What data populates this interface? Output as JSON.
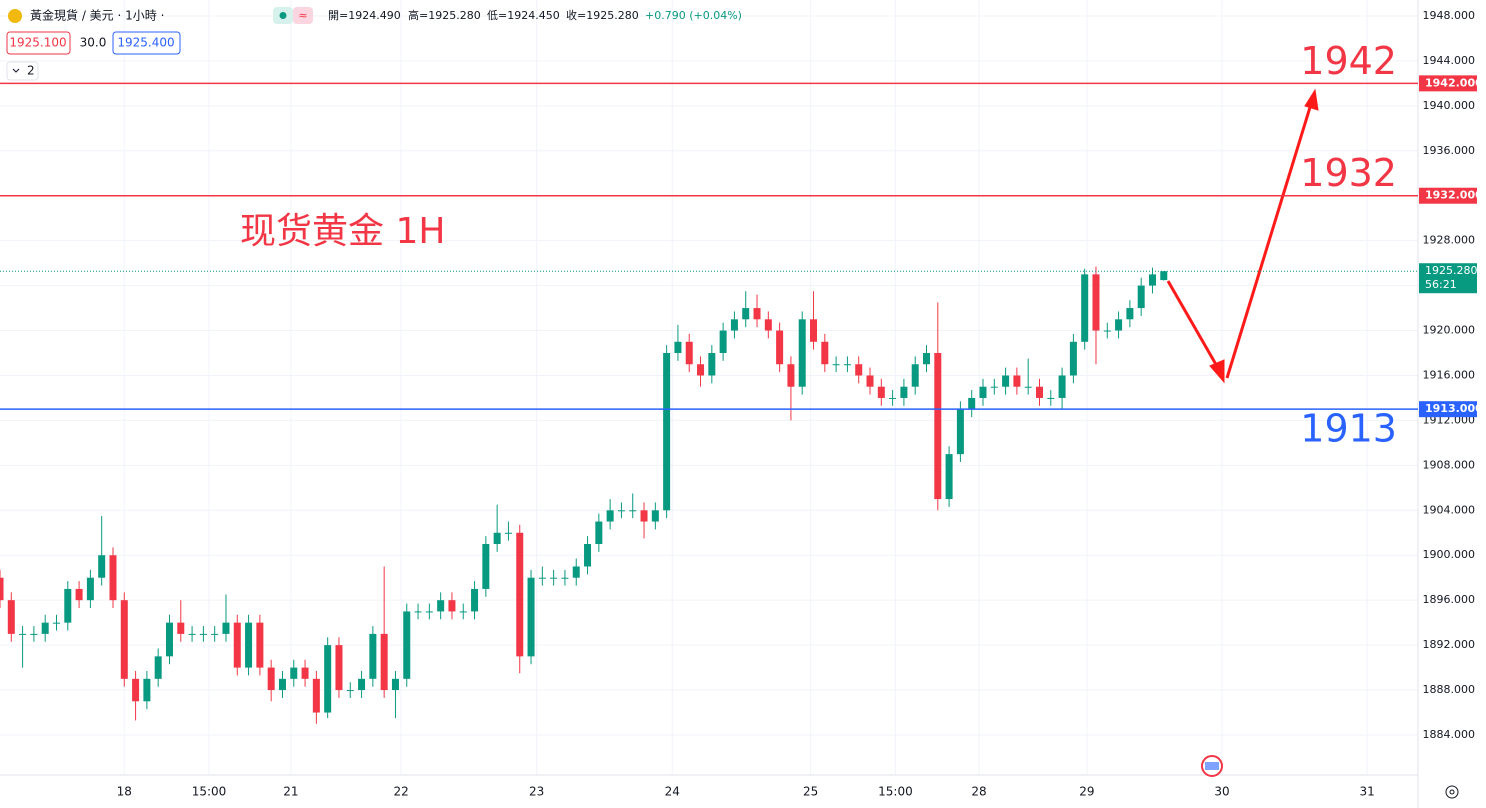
{
  "header": {
    "symbol": "黃金現貨 / 美元 · 1小時 ·",
    "open": "開=1924.490",
    "high": "高=1925.280",
    "low": "低=1924.450",
    "close": "收=1925.280",
    "change": "+0.790 (+0.04%)",
    "bid": "1925.100",
    "spread": "30.0",
    "ask": "1925.400",
    "indicators": "2"
  },
  "chart_data": {
    "type": "candlestick",
    "annotation": "现货黄金 1H",
    "up_color": "#089981",
    "down_color": "#f23645",
    "x": [
      0,
      2,
      4,
      6,
      8,
      10,
      12,
      14,
      16,
      18,
      20,
      22,
      24,
      26,
      28,
      30,
      32,
      34,
      36,
      38,
      40,
      42,
      44,
      46,
      48,
      50,
      52,
      54,
      56,
      58,
      60,
      62,
      64,
      66,
      68,
      70,
      72,
      74,
      76,
      78,
      80,
      82,
      84,
      86,
      88,
      90,
      92,
      94,
      96,
      98,
      100,
      102,
      104,
      106,
      108,
      110,
      112,
      114,
      116,
      118,
      120,
      122,
      124,
      126,
      128,
      130,
      132,
      134,
      136,
      138,
      140,
      142,
      144,
      146,
      148,
      150,
      152,
      154,
      156,
      158,
      160,
      162,
      164,
      166,
      168,
      170,
      172,
      174,
      176,
      178,
      180,
      182,
      184,
      186,
      188,
      190,
      192,
      194,
      196,
      198,
      200,
      202,
      204,
      206
    ],
    "open": [
      1898,
      1896,
      1893,
      1893,
      1893,
      1894,
      1894,
      1897,
      1896,
      1898,
      1900,
      1896,
      1889,
      1887,
      1889,
      1891,
      1894,
      1893,
      1893,
      1893,
      1893,
      1894,
      1890,
      1894,
      1890,
      1888,
      1889,
      1890,
      1889,
      1886,
      1892,
      1888,
      1888,
      1889,
      1893,
      1888,
      1889,
      1895,
      1895,
      1895,
      1896,
      1895,
      1895,
      1897,
      1901,
      1902,
      1902,
      1891,
      1898,
      1898,
      1898,
      1898,
      1899,
      1901,
      1903,
      1904,
      1904,
      1904,
      1903,
      1904,
      1918,
      1919,
      1917,
      1916,
      1918,
      1920,
      1921,
      1922,
      1921,
      1920,
      1917,
      1915,
      1921,
      1919,
      1917,
      1917,
      1917,
      1916,
      1915,
      1914,
      1914,
      1915,
      1917,
      1918,
      1905,
      1909,
      1913,
      1914,
      1915,
      1915,
      1916,
      1915,
      1915,
      1914,
      1914,
      1916,
      1919,
      1925,
      1920,
      1920,
      1921,
      1922,
      1924,
      1924.49
    ],
    "high": [
      1898.7,
      1896.7,
      1893.7,
      1893.7,
      1894.7,
      1894.7,
      1897.7,
      1897.7,
      1898.7,
      1903.5,
      1900.7,
      1896.7,
      1889.7,
      1889.7,
      1891.7,
      1894.7,
      1896,
      1893.7,
      1893.7,
      1893.7,
      1896.5,
      1894.7,
      1894.7,
      1894.7,
      1890.7,
      1889.7,
      1890.7,
      1890.7,
      1889.7,
      1892.7,
      1892.7,
      1888.7,
      1889.7,
      1893.7,
      1899,
      1889.7,
      1895.7,
      1895.7,
      1895.7,
      1896.7,
      1896.7,
      1895.7,
      1897.7,
      1901.7,
      1904.5,
      1903,
      1902.7,
      1898.7,
      1899,
      1898.7,
      1898.7,
      1899.7,
      1901.7,
      1903.7,
      1905,
      1904.7,
      1905.5,
      1904.7,
      1904.7,
      1918.7,
      1920.5,
      1919.7,
      1917.7,
      1918.7,
      1920.7,
      1921.7,
      1923.5,
      1923.2,
      1921.7,
      1920.7,
      1917.7,
      1921.7,
      1923.5,
      1919.7,
      1917.7,
      1917.7,
      1917.7,
      1916.7,
      1915.7,
      1914.7,
      1915.7,
      1917.7,
      1918.7,
      1922.5,
      1909.7,
      1913.7,
      1914.7,
      1915.7,
      1915.7,
      1916.7,
      1916.7,
      1917.5,
      1915.7,
      1914.7,
      1916.7,
      1919.7,
      1925.5,
      1925.7,
      1920.7,
      1921.7,
      1922.7,
      1924.7,
      1925.6,
      1925.28
    ],
    "low": [
      1895.3,
      1892.3,
      1890,
      1892.3,
      1892.3,
      1893.3,
      1893.3,
      1895.3,
      1895.3,
      1897.3,
      1895.3,
      1888.3,
      1885.3,
      1886.3,
      1888.3,
      1890.3,
      1892.3,
      1892.3,
      1892.3,
      1892.3,
      1892.3,
      1889.3,
      1889.3,
      1889.3,
      1887,
      1887.3,
      1888.3,
      1888.3,
      1885,
      1885.5,
      1887.3,
      1887.3,
      1887.3,
      1888.3,
      1887.3,
      1885.5,
      1888.3,
      1894.3,
      1894.3,
      1894.3,
      1894.3,
      1894.3,
      1894.3,
      1896.3,
      1900.3,
      1901.3,
      1889.5,
      1890.3,
      1897.3,
      1897.3,
      1897.3,
      1897.3,
      1898.3,
      1900.3,
      1902.3,
      1903.3,
      1903.3,
      1901.5,
      1902.3,
      1903.3,
      1917.3,
      1916.3,
      1915,
      1915.3,
      1917.3,
      1919.3,
      1920.3,
      1920.3,
      1919.3,
      1916.3,
      1912,
      1914.3,
      1918.3,
      1916.3,
      1916.3,
      1916.3,
      1915.3,
      1914.3,
      1913.3,
      1913.3,
      1913.3,
      1914.3,
      1916.3,
      1904,
      1904.3,
      1908.3,
      1912.3,
      1913.3,
      1914.3,
      1914.3,
      1914.3,
      1914.3,
      1913.3,
      1913.3,
      1913,
      1915.3,
      1918.3,
      1917,
      1919.3,
      1919.3,
      1920.3,
      1921.3,
      1923.3,
      1924.45
    ],
    "close": [
      1896,
      1893,
      1893,
      1893,
      1894,
      1894,
      1897,
      1896,
      1898,
      1900,
      1896,
      1889,
      1887,
      1889,
      1891,
      1894,
      1893,
      1893,
      1893,
      1893,
      1894,
      1890,
      1894,
      1890,
      1888,
      1889,
      1890,
      1889,
      1886,
      1892,
      1888,
      1888,
      1889,
      1893,
      1888,
      1889,
      1895,
      1895,
      1895,
      1896,
      1895,
      1895,
      1897,
      1901,
      1902,
      1902,
      1891,
      1898,
      1898,
      1898,
      1898,
      1899,
      1901,
      1903,
      1904,
      1904,
      1904,
      1903,
      1904,
      1918,
      1919,
      1917,
      1916,
      1918,
      1920,
      1921,
      1922,
      1921,
      1920,
      1917,
      1915,
      1921,
      1919,
      1917,
      1917,
      1917,
      1916,
      1915,
      1914,
      1914,
      1915,
      1917,
      1918,
      1905,
      1909,
      1913,
      1914,
      1915,
      1915,
      1916,
      1915,
      1915,
      1914,
      1914,
      1916,
      1919,
      1925,
      1920,
      1920,
      1921,
      1922,
      1924,
      1925,
      1925.28
    ],
    "levels": [
      {
        "value": 1942,
        "label": "1942.000",
        "color": "#f23645"
      },
      {
        "value": 1932,
        "label": "1932.000",
        "color": "#f23645"
      },
      {
        "value": 1913,
        "label": "1913.000",
        "color": "#2962ff"
      }
    ],
    "last_price": {
      "value": 1925.28,
      "label": "1925.280",
      "countdown": "56:21",
      "color": "#089981"
    },
    "xlim": [
      0,
      251
    ],
    "xticks": [
      {
        "value": 22,
        "label": "18"
      },
      {
        "value": 37,
        "label": "15:00"
      },
      {
        "value": 51.5,
        "label": "21"
      },
      {
        "value": 71,
        "label": "22"
      },
      {
        "value": 95,
        "label": "23"
      },
      {
        "value": 119,
        "label": "24"
      },
      {
        "value": 143.5,
        "label": "25"
      },
      {
        "value": 158.5,
        "label": "15:00"
      },
      {
        "value": 173.3,
        "label": "28"
      },
      {
        "value": 192.4,
        "label": "29"
      },
      {
        "value": 216.3,
        "label": "30"
      },
      {
        "value": 242,
        "label": "31"
      }
    ],
    "ylim": [
      1880.44,
      1949.42
    ],
    "yticks": [
      {
        "value": 1884,
        "label": "1884.000"
      },
      {
        "value": 1888,
        "label": "1888.000"
      },
      {
        "value": 1892,
        "label": "1892.000"
      },
      {
        "value": 1896,
        "label": "1896.000"
      },
      {
        "value": 1900,
        "label": "1900.000"
      },
      {
        "value": 1904,
        "label": "1904.000"
      },
      {
        "value": 1908,
        "label": "1908.000"
      },
      {
        "value": 1912,
        "label": "1912.000"
      },
      {
        "value": 1916,
        "label": "1916.000"
      },
      {
        "value": 1920,
        "label": "1920.000"
      },
      {
        "value": 1924,
        "label": "1924.000"
      },
      {
        "value": 1928,
        "label": "1928.000"
      },
      {
        "value": 1932,
        "label": "1932.000"
      },
      {
        "value": 1936,
        "label": "1936.000"
      },
      {
        "value": 1940,
        "label": "1940.000"
      },
      {
        "value": 1944,
        "label": "1944.000"
      },
      {
        "value": 1948,
        "label": "1948.000"
      }
    ],
    "grid": true
  }
}
